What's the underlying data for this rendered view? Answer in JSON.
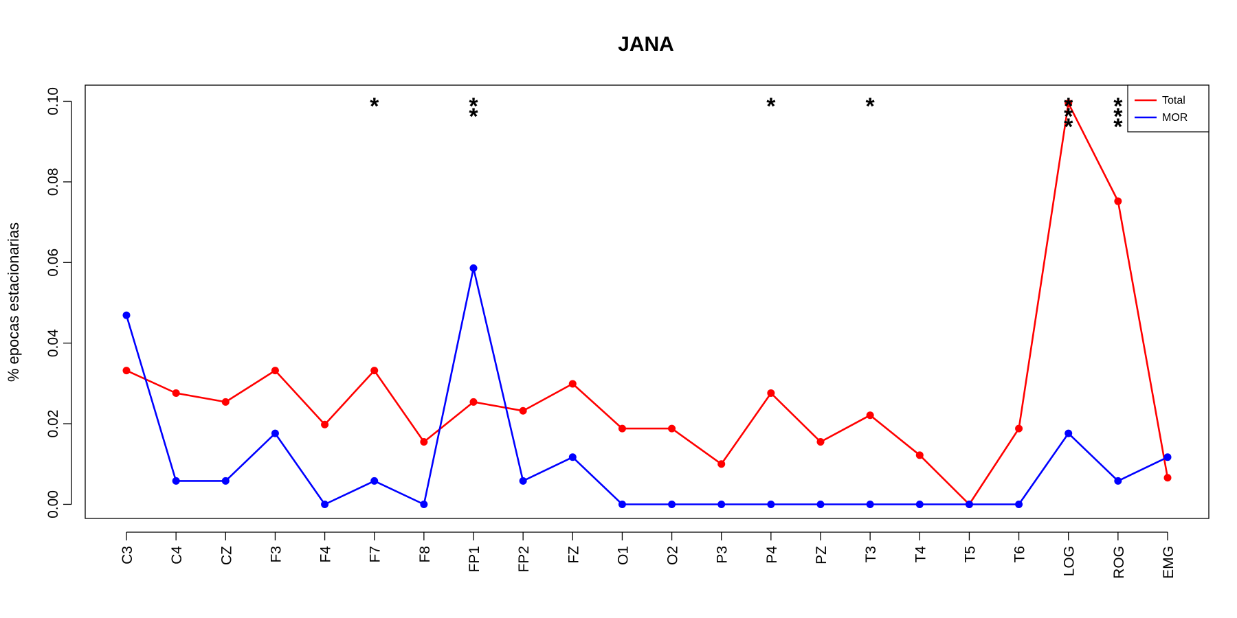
{
  "chart_data": {
    "type": "line",
    "title": "JANA",
    "xlabel": "",
    "ylabel": "% epocas estacionarias",
    "categories": [
      "C3",
      "C4",
      "CZ",
      "F3",
      "F4",
      "F7",
      "F8",
      "FP1",
      "FP2",
      "FZ",
      "O1",
      "O2",
      "P3",
      "P4",
      "PZ",
      "T3",
      "T4",
      "T5",
      "T6",
      "LOG",
      "ROG",
      "EMG"
    ],
    "yticks": [
      "0.00",
      "0.02",
      "0.04",
      "0.06",
      "0.08",
      "0.10"
    ],
    "ylim": [
      -0.0035,
      0.104
    ],
    "grid": false,
    "legend_position": "top-right",
    "series": [
      {
        "name": "Total",
        "color": "#ff0000",
        "values": [
          0.0332,
          0.0276,
          0.0254,
          0.0332,
          0.0198,
          0.0332,
          0.0155,
          0.0254,
          0.0232,
          0.0299,
          0.0188,
          0.0188,
          0.01,
          0.0276,
          0.0155,
          0.0221,
          0.0122,
          0.0,
          0.0188,
          0.0995,
          0.0752,
          0.0066
        ]
      },
      {
        "name": "MOR",
        "color": "#0000ff",
        "values": [
          0.0469,
          0.0058,
          0.0058,
          0.0176,
          0.0,
          0.0058,
          0.0,
          0.0586,
          0.0058,
          0.0117,
          0.0,
          0.0,
          0.0,
          0.0,
          0.0,
          0.0,
          0.0,
          0.0,
          0.0,
          0.0176,
          0.0058,
          0.0117
        ]
      }
    ],
    "annotations": [
      {
        "category": "F7",
        "text": "*"
      },
      {
        "category": "FP1",
        "text": "*"
      },
      {
        "category": "FP1",
        "text": "*"
      },
      {
        "category": "P4",
        "text": "*"
      },
      {
        "category": "T3",
        "text": "*"
      },
      {
        "category": "LOG",
        "text": "*"
      },
      {
        "category": "LOG",
        "text": "*"
      },
      {
        "category": "LOG",
        "text": "*"
      },
      {
        "category": "ROG",
        "text": "*"
      },
      {
        "category": "ROG",
        "text": "*"
      },
      {
        "category": "ROG",
        "text": "*"
      }
    ]
  }
}
